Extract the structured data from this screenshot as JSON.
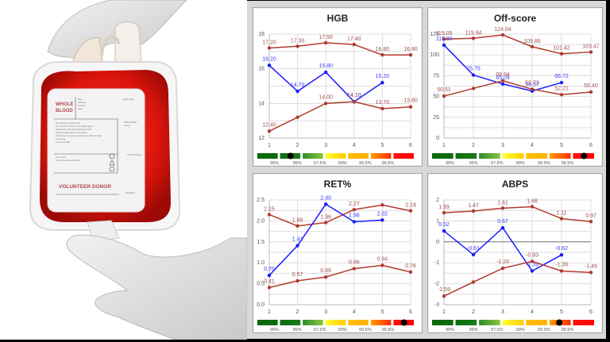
{
  "photo": {
    "label": {
      "title_line1": "WHOLE",
      "title_line2": "BLOOD",
      "footer": "VOLUNTEER DONOR",
      "side_fields": [
        "Expiry Date",
        "ABO and RhD Group",
        "Content Identity",
        "Date Bled"
      ],
      "small_fields": [
        "Mfg",
        "Donation",
        "Number",
        "Here"
      ],
      "instructions": [
        "For storage of whole blood.",
        "Do not reuse if there is any visible sign of",
        "deterioration. The fluid pathways of this",
        "pack are sterile and non pyrogenic.",
        "Contents of unit pack must be used within 10 days",
        "of opening.",
        "Do not use after"
      ],
      "warnings": [
        "Do not vent",
        "Do not reuse this container"
      ]
    }
  },
  "colors": {
    "limit_line": "#b03a2e",
    "limit_label": "#a05050",
    "value_line": "#1a1aff",
    "value_label": "#3a3aff",
    "grid": "#dddddd",
    "scale_segments": [
      [
        "#0b6a0b",
        "#0b6a0b"
      ],
      [
        "#0e6e0e",
        "#1a7a1a"
      ],
      [
        "#2e8b2e",
        "#8cc63f"
      ],
      [
        "#ffff33",
        "#ffcc00"
      ],
      [
        "#ffc000",
        "#ffb000"
      ],
      [
        "#ffa000",
        "#ff2a00"
      ],
      [
        "#ff1010",
        "#ff0000"
      ]
    ]
  },
  "scale_labels": [
    "90%",
    "95%",
    "97.5%",
    "99%",
    "99.5%",
    "99.9%"
  ],
  "chart_data": [
    {
      "type": "line",
      "title": "HGB",
      "x": [
        1,
        2,
        3,
        4,
        5,
        6
      ],
      "ylim": [
        12,
        18
      ],
      "yticks": [
        12,
        14,
        16,
        18
      ],
      "grid": true,
      "series": [
        {
          "name": "upper_limit",
          "values": [
            17.2,
            17.3,
            17.5,
            17.4,
            16.8,
            16.8
          ],
          "labels": [
            "17.20",
            "17.30",
            "17.50",
            "17.40",
            "16.80",
            "16.80"
          ]
        },
        {
          "name": "measured",
          "values": [
            16.2,
            14.7,
            15.8,
            14.1,
            15.2,
            null
          ],
          "labels": [
            "16.20",
            "14.70",
            "15.80",
            "14.10",
            "15.20",
            ""
          ]
        },
        {
          "name": "lower_limit",
          "values": [
            12.4,
            13.2,
            14.0,
            14.1,
            13.7,
            13.8
          ],
          "labels": [
            "12.40",
            "",
            "14.00",
            "14.10",
            "13.70",
            "13.80"
          ]
        }
      ],
      "percentile_marker": {
        "segment": 1,
        "position": 0.5
      }
    },
    {
      "type": "line",
      "title": "Off-score",
      "x": [
        1,
        2,
        3,
        4,
        5,
        6
      ],
      "ylim": [
        0,
        125
      ],
      "yticks": [
        0,
        25,
        50,
        75,
        100,
        125
      ],
      "grid": true,
      "series": [
        {
          "name": "upper_limit",
          "values": [
            119.05,
            119.94,
            124.04,
            109.86,
            101.42,
            103.47
          ],
          "labels": [
            "119.05",
            "119.94",
            "124.04",
            "109.86",
            "101.42",
            "103.47"
          ]
        },
        {
          "name": "measured",
          "values": [
            111.8,
            75.75,
            65.09,
            56.57,
            66.72,
            null
          ],
          "labels": [
            "111.80",
            "75.75",
            "65.09",
            "56.57",
            "66.72",
            ""
          ]
        },
        {
          "name": "lower_limit",
          "values": [
            50.51,
            59.72,
            68.94,
            58.73,
            52.21,
            55.4
          ],
          "labels": [
            "50.51",
            "",
            "68.94",
            "58.73",
            "52.21",
            "55.40"
          ]
        }
      ],
      "percentile_marker": {
        "segment": 6,
        "position": 0.5
      }
    },
    {
      "type": "line",
      "title": "RET%",
      "x": [
        1,
        2,
        3,
        4,
        5,
        6
      ],
      "ylim": [
        0.0,
        2.5
      ],
      "yticks": [
        0.0,
        0.5,
        1.0,
        1.5,
        2.0,
        2.5
      ],
      "grid": true,
      "series": [
        {
          "name": "upper_limit",
          "values": [
            2.15,
            1.88,
            1.96,
            2.27,
            2.38,
            2.24
          ],
          "labels": [
            "2.15",
            "1.88",
            "1.96",
            "2.27",
            "",
            "2.24"
          ]
        },
        {
          "name": "measured",
          "values": [
            0.7,
            1.41,
            2.4,
            1.98,
            2.02,
            null
          ],
          "labels": [
            "0.70",
            "1.41",
            "2.40",
            "1.98",
            "2.02",
            ""
          ]
        },
        {
          "name": "lower_limit",
          "values": [
            0.41,
            0.57,
            0.66,
            0.86,
            0.94,
            0.78
          ],
          "labels": [
            "0.41",
            "0.57",
            "0.66",
            "0.86",
            "0.94",
            "0.78"
          ]
        }
      ],
      "percentile_marker": {
        "segment": 6,
        "position": 0.5
      }
    },
    {
      "type": "line",
      "title": "ABPS",
      "x": [
        1,
        2,
        3,
        4,
        5,
        6
      ],
      "ylim": [
        -3,
        2
      ],
      "yticks": [
        -3,
        -2,
        -1,
        0,
        1,
        2
      ],
      "grid": true,
      "zero_line": true,
      "series": [
        {
          "name": "upper_limit",
          "values": [
            1.39,
            1.47,
            1.61,
            1.68,
            1.11,
            0.97
          ],
          "labels": [
            "1.39",
            "1.47",
            "1.61",
            "1.68",
            "1.11",
            "0.97"
          ]
        },
        {
          "name": "measured",
          "values": [
            0.52,
            -0.61,
            0.67,
            -1.39,
            -0.62,
            null
          ],
          "labels": [
            "0.52",
            "-0.61",
            "0.67",
            "-1.39",
            "-0.62",
            ""
          ]
        },
        {
          "name": "lower_limit",
          "values": [
            -2.59,
            -1.92,
            -1.26,
            -0.93,
            -1.39,
            -1.46
          ],
          "labels": [
            "-2.59",
            "",
            "-1.26",
            "-0.93",
            "-1.39",
            "-1.46"
          ]
        }
      ],
      "percentile_marker": {
        "segment": 5,
        "position": 0.45
      }
    }
  ]
}
